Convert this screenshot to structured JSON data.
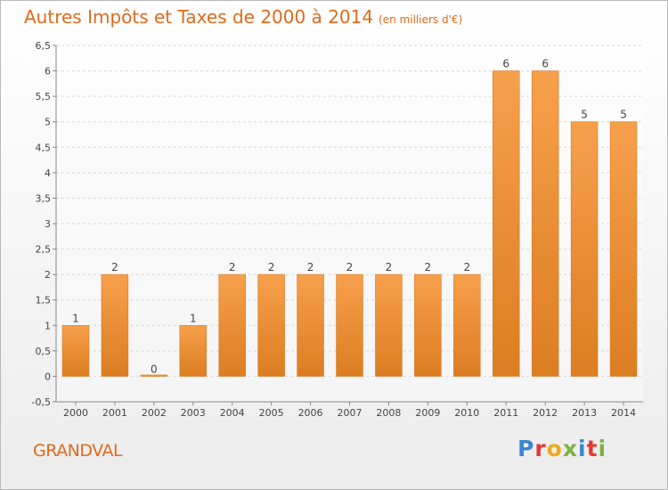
{
  "header": {
    "title": "Autres Impôts et Taxes de 2000 à 2014",
    "subtitle": "(en milliers d'€)"
  },
  "footer": {
    "place": "GRANDVAL",
    "brand": "Proxiti",
    "brand_colors": [
      "#3a86d4",
      "#e53935",
      "#f2a81d",
      "#7cb342",
      "#3a86d4",
      "#e53935",
      "#7cb342"
    ]
  },
  "colors": {
    "bar_top": "#f7a04c",
    "bar_bottom": "#dc7d22",
    "grid": "#d8d8d8",
    "axis": "#888888",
    "text": "#444444",
    "accent": "#e06a1c"
  },
  "chart_data": {
    "type": "bar",
    "title": "Autres Impôts et Taxes de 2000 à 2014",
    "subtitle": "(en milliers d'€)",
    "categories": [
      "2000",
      "2001",
      "2002",
      "2003",
      "2004",
      "2005",
      "2006",
      "2007",
      "2008",
      "2009",
      "2010",
      "2011",
      "2012",
      "2013",
      "2014"
    ],
    "values": [
      1,
      2,
      0,
      1,
      2,
      2,
      2,
      2,
      2,
      2,
      2,
      6,
      6,
      5,
      5
    ],
    "data_labels": [
      "1",
      "2",
      "0",
      "1",
      "2",
      "2",
      "2",
      "2",
      "2",
      "2",
      "2",
      "6",
      "6",
      "5",
      "5"
    ],
    "ylim": [
      -0.5,
      6.5
    ],
    "yticks": [
      -0.5,
      0,
      0.5,
      1,
      1.5,
      2,
      2.5,
      3,
      3.5,
      4,
      4.5,
      5,
      5.5,
      6,
      6.5
    ],
    "ytick_labels": [
      "-0,5",
      "0",
      "0,5",
      "1",
      "1,5",
      "2",
      "2,5",
      "3",
      "3,5",
      "4",
      "4,5",
      "5",
      "5,5",
      "6",
      "6,5"
    ],
    "grid": true,
    "legend": "none"
  }
}
